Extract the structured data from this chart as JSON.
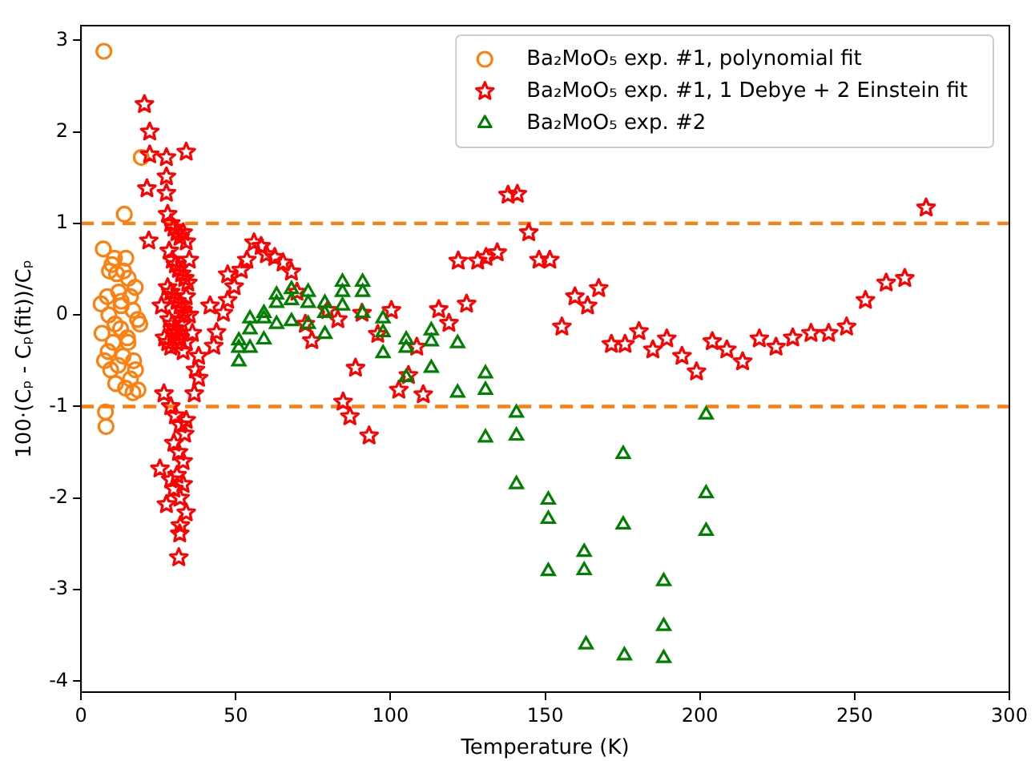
{
  "chart_data": {
    "type": "scatter",
    "xlabel": "Temperature (K)",
    "ylabel": "100·(Cₚ - Cₚ(fit))/Cₚ",
    "xlim": [
      0,
      300
    ],
    "xticks": [
      0,
      50,
      100,
      150,
      200,
      250,
      300
    ],
    "ylim": [
      -4.12,
      3.16
    ],
    "yticks": [
      -4,
      -3,
      -2,
      -1,
      0,
      1,
      2,
      3
    ],
    "grid": false,
    "legend": "top right",
    "ref_lines": [
      {
        "axis": "y",
        "value": 1,
        "color": "#ff7f0e",
        "line_style": "dashed"
      },
      {
        "axis": "y",
        "value": -1,
        "color": "#ff7f0e",
        "line_style": "dashed"
      }
    ],
    "series": [
      {
        "name": "Ba₂MoO₅ exp. #1, polynomial fit",
        "color": "#ff7f0e",
        "marker": "circle",
        "x": [
          7.4,
          19.5,
          14,
          7.9,
          8.1,
          6.5,
          7.2,
          8.5,
          9.2,
          10,
          10.8,
          11.5,
          12.2,
          13,
          13.8,
          14.5,
          15.3,
          16,
          16.8,
          17.5,
          18.3,
          19,
          6.8,
          7.6,
          8.8,
          9.6,
          10.4,
          11.2,
          12,
          12.8,
          13.6,
          14.4,
          15.2,
          16,
          16.8,
          17.6,
          18.4,
          9,
          11,
          13,
          15,
          17
        ],
        "values": [
          2.88,
          1.72,
          1.1,
          -1.06,
          -1.22,
          0.12,
          0.72,
          0.2,
          0.48,
          0.55,
          0.62,
          0.45,
          0.25,
          0.1,
          0.48,
          0.62,
          0.4,
          0.2,
          0.05,
          0.3,
          -0.05,
          -0.1,
          -0.2,
          -0.5,
          -0.4,
          -0.6,
          -0.3,
          -0.75,
          -0.55,
          -0.15,
          -0.45,
          -0.8,
          -0.3,
          -0.7,
          -0.85,
          -0.6,
          -0.82,
          0.0,
          -0.1,
          0.15,
          -0.25,
          -0.5
        ]
      },
      {
        "name": "Ba₂MoO₅ exp. #1, 1 Debye + 2 Einstein fit",
        "color": "#ff0000",
        "marker": "star",
        "x": [
          20.5,
          22.2,
          22.2,
          27.6,
          34,
          21.3,
          27.6,
          21.9,
          27.6,
          28,
          29,
          30,
          31,
          32,
          33,
          34,
          35,
          28.5,
          29.5,
          30.5,
          31.5,
          32.5,
          33.5,
          34.5,
          28,
          29,
          30,
          31,
          32,
          33,
          34,
          35,
          28.5,
          29.5,
          30.5,
          31.5,
          32.5,
          33.5,
          27,
          28,
          29,
          30,
          31,
          32,
          33,
          34,
          36,
          26,
          37,
          38,
          26.8,
          29,
          30.5,
          32,
          33.5,
          34,
          30,
          31.5,
          33,
          25.5,
          27.6,
          32.1,
          31.9,
          31.6,
          34,
          29,
          30,
          31,
          32,
          33,
          36.6,
          38,
          42.9,
          43.8,
          41.7,
          46,
          47.4,
          49.5,
          47.4,
          51.8,
          53.6,
          55.9,
          58.2,
          59.9,
          62.6,
          65.3,
          68,
          69.8,
          72.5,
          74.6,
          79.7,
          83,
          84.7,
          86.9,
          88.7,
          90.8,
          93.1,
          100.3,
          95.9,
          102.7,
          105.8,
          108.5,
          110.6,
          115.6,
          118.9,
          124.6,
          121.9,
          128.2,
          130.9,
          134.5,
          138,
          141,
          144.7,
          148,
          151.5,
          155.4,
          159.6,
          163.7,
          167.3,
          171.4,
          175.8,
          180.3,
          184.8,
          189.3,
          194.2,
          198.9,
          204,
          208.7,
          213.8,
          219.2,
          224.6,
          230,
          235.9,
          241.6,
          247.4,
          253.5,
          260.2,
          266.2,
          273.1
        ],
        "values": [
          2.3,
          2.0,
          1.75,
          1.72,
          1.78,
          1.38,
          1.51,
          0.81,
          1.33,
          1.1,
          1.0,
          0.95,
          0.9,
          0.85,
          0.9,
          0.8,
          0.6,
          0.7,
          0.6,
          0.55,
          0.5,
          0.45,
          0.4,
          0.35,
          0.3,
          0.25,
          0.2,
          0.15,
          0.1,
          0.05,
          0.2,
          0.0,
          -0.05,
          -0.1,
          -0.15,
          -0.2,
          -0.1,
          0.0,
          -0.25,
          -0.3,
          -0.35,
          -0.2,
          -0.3,
          -0.25,
          -0.4,
          -0.3,
          -0.2,
          0.1,
          -0.6,
          -0.45,
          -0.86,
          -1.0,
          -1.1,
          -1.2,
          -1.3,
          -1.15,
          -1.4,
          -1.5,
          -1.6,
          -1.68,
          -2.07,
          -2.3,
          -2.39,
          -2.65,
          -2.16,
          -1.8,
          -1.9,
          -1.75,
          -2.0,
          -1.85,
          -0.86,
          -0.69,
          -0.34,
          -0.19,
          0.1,
          0.02,
          0.16,
          0.31,
          0.44,
          0.49,
          0.6,
          0.79,
          0.75,
          0.66,
          0.63,
          0.57,
          0.47,
          0.25,
          -0.1,
          -0.28,
          0.05,
          -0.05,
          -0.95,
          -1.11,
          -0.58,
          0.02,
          -1.32,
          0.05,
          -0.21,
          -0.82,
          -0.66,
          -0.35,
          -0.87,
          0.06,
          -0.09,
          0.12,
          0.59,
          0.59,
          0.63,
          0.68,
          1.31,
          1.32,
          0.9,
          0.6,
          0.6,
          -0.13,
          0.2,
          0.1,
          0.29,
          -0.32,
          -0.32,
          -0.18,
          -0.38,
          -0.26,
          -0.45,
          -0.62,
          -0.29,
          -0.38,
          -0.51,
          -0.26,
          -0.35,
          -0.25,
          -0.2,
          -0.2,
          -0.13,
          0.16,
          0.35,
          0.4,
          1.17
        ]
      },
      {
        "name": "Ba₂MoO₅ exp. #2",
        "color": "#008000",
        "marker": "triangle",
        "x": [
          51,
          51,
          51,
          54.6,
          54.6,
          54.6,
          59.1,
          59.1,
          59.1,
          63.2,
          63.2,
          63.2,
          68,
          68,
          68,
          73.4,
          73.4,
          73.4,
          78.8,
          78.8,
          78.8,
          84.5,
          84.5,
          84.5,
          91,
          91,
          91,
          97.6,
          97.6,
          97.6,
          105.1,
          105.1,
          105.1,
          113.2,
          113.2,
          113.2,
          121.7,
          121.7,
          130.7,
          130.7,
          130.7,
          140.7,
          140.7,
          140.7,
          151,
          151,
          151,
          162.6,
          162.6,
          163.2,
          175.2,
          175.2,
          175.6,
          188.3,
          188.3,
          188.3,
          202,
          202,
          202
        ],
        "values": [
          -0.51,
          -0.28,
          -0.36,
          -0.04,
          -0.16,
          -0.36,
          0.02,
          -0.04,
          -0.27,
          0.22,
          0.13,
          -0.1,
          0.28,
          0.16,
          -0.07,
          0.25,
          0.13,
          -0.1,
          0.13,
          0.02,
          -0.21,
          0.36,
          0.25,
          0.1,
          0.36,
          0.25,
          0.02,
          -0.04,
          -0.19,
          -0.42,
          -0.27,
          -0.36,
          -0.68,
          -0.17,
          -0.29,
          -0.58,
          -0.31,
          -0.85,
          -0.64,
          -0.82,
          -1.34,
          -1.07,
          -1.32,
          -1.85,
          -2.02,
          -2.23,
          -2.8,
          -2.59,
          -2.79,
          -3.6,
          -1.52,
          -2.29,
          -3.72,
          -2.91,
          -3.4,
          -3.75,
          -1.09,
          -1.95,
          -2.36
        ]
      }
    ]
  }
}
